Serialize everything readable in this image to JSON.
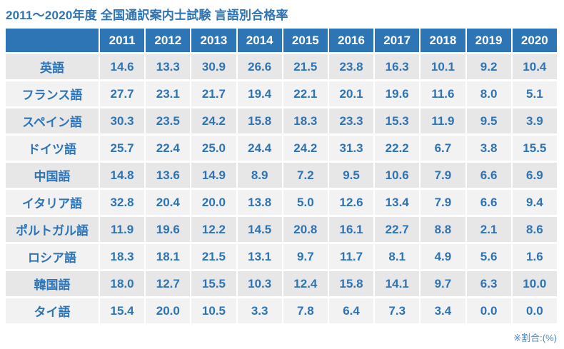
{
  "title": "2011～2020年度 全国通訳案内士試験 言語別合格率",
  "footnote": "※割合:(%)",
  "colors": {
    "header_bg": "#2E75B6",
    "text_blue": "#2E74B5",
    "pink": "#F2679B",
    "row_dark": "#E7E7E7",
    "row_light": "#F2F2F2",
    "footnote_blue": "#4A8BC4"
  },
  "chart_data": {
    "type": "table",
    "title": "2011～2020年度 全国通訳案内士試験 言語別合格率",
    "unit_note": "※割合:(%)",
    "corner_label": "",
    "categories": [
      "2011",
      "2012",
      "2013",
      "2014",
      "2015",
      "2016",
      "2017",
      "2018",
      "2019",
      "2020"
    ],
    "rows": [
      {
        "label": "英語",
        "values": [
          14.6,
          13.3,
          30.9,
          26.6,
          21.5,
          23.8,
          16.3,
          10.1,
          9.2,
          10.4
        ],
        "pink_indices": [
          8
        ]
      },
      {
        "label": "フランス語",
        "values": [
          27.7,
          23.1,
          21.7,
          19.4,
          22.1,
          20.1,
          19.6,
          11.6,
          8.0,
          5.1
        ],
        "pink_indices": [
          9
        ]
      },
      {
        "label": "スペイン語",
        "values": [
          30.3,
          23.5,
          24.2,
          15.8,
          18.3,
          23.3,
          15.3,
          11.9,
          9.5,
          3.9
        ],
        "pink_indices": [
          9
        ]
      },
      {
        "label": "ドイツ語",
        "values": [
          25.7,
          22.4,
          25.0,
          24.4,
          24.2,
          31.3,
          22.2,
          6.7,
          3.8,
          15.5
        ],
        "pink_indices": [
          8
        ]
      },
      {
        "label": "中国語",
        "values": [
          14.8,
          13.6,
          14.9,
          8.9,
          7.2,
          9.5,
          10.6,
          7.9,
          6.6,
          6.9
        ],
        "pink_indices": [
          8
        ]
      },
      {
        "label": "イタリア語",
        "values": [
          32.8,
          20.4,
          20.0,
          13.8,
          5.0,
          12.6,
          13.4,
          7.9,
          6.6,
          9.4
        ],
        "pink_indices": [
          4
        ]
      },
      {
        "label": "ポルトガル語",
        "values": [
          11.9,
          19.6,
          12.2,
          14.5,
          20.8,
          16.1,
          22.7,
          8.8,
          2.1,
          8.6
        ],
        "pink_indices": [
          8
        ]
      },
      {
        "label": "ロシア語",
        "values": [
          18.3,
          18.1,
          21.5,
          13.1,
          9.7,
          11.7,
          8.1,
          4.9,
          5.6,
          1.6
        ],
        "pink_indices": [
          9
        ]
      },
      {
        "label": "韓国語",
        "values": [
          18.0,
          12.7,
          15.5,
          10.3,
          12.4,
          15.8,
          14.1,
          9.7,
          6.3,
          10.0
        ],
        "pink_indices": [
          8
        ]
      },
      {
        "label": "タイ語",
        "values": [
          15.4,
          20.0,
          10.5,
          3.3,
          7.8,
          6.4,
          7.3,
          3.4,
          0.0,
          0.0
        ],
        "pink_indices": [
          8,
          9
        ]
      }
    ]
  }
}
